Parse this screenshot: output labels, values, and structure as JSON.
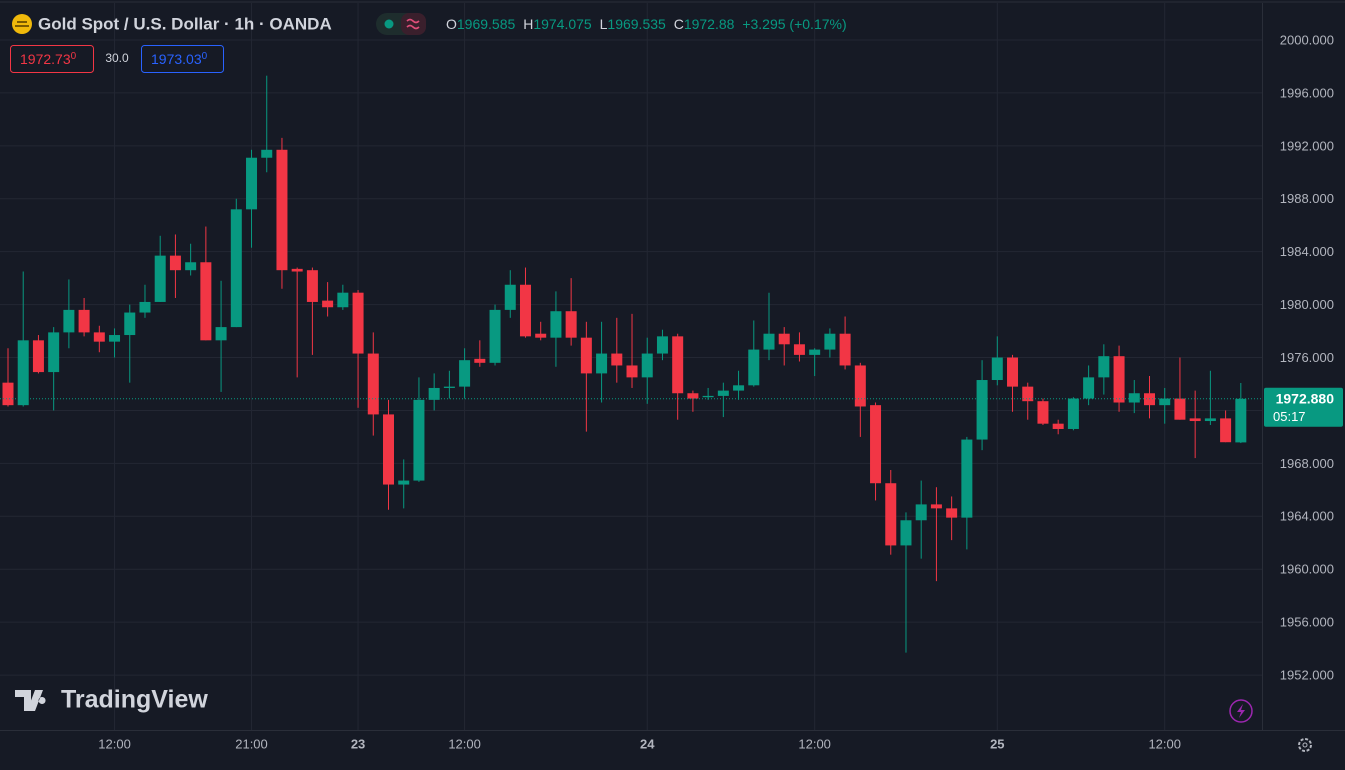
{
  "chart_data": {
    "type": "candlestick",
    "title": "Gold Spot / U.S. Dollar · 1h · OANDA",
    "ohlc_labels": [
      "O",
      "H",
      "L",
      "C"
    ],
    "change_label": "+3.295 (+0.17%)",
    "sell_price": "1972.73",
    "sell_fraction": "0",
    "spread": "30.0",
    "buy_price": "1973.03",
    "buy_fraction": "0",
    "last_price": {
      "value": 1972.88,
      "label": "1972.880"
    },
    "countdown": "05:17",
    "watermark": "TradingView",
    "up_color": "#089981",
    "down_color": "#f23645",
    "grid": true,
    "categories": [
      null,
      null,
      null,
      null,
      null,
      null,
      null,
      "12:00",
      null,
      null,
      null,
      null,
      null,
      null,
      null,
      null,
      "21:00",
      null,
      null,
      null,
      null,
      null,
      null,
      "23",
      null,
      null,
      null,
      null,
      null,
      null,
      "12:00",
      null,
      null,
      null,
      null,
      null,
      null,
      null,
      null,
      null,
      null,
      null,
      "24",
      null,
      null,
      null,
      null,
      null,
      null,
      null,
      null,
      null,
      null,
      "12:00",
      null,
      null,
      null,
      null,
      null,
      null,
      null,
      null,
      null,
      null,
      null,
      "25",
      null,
      null,
      null,
      null,
      null,
      null,
      null,
      null,
      null,
      null,
      "12:00",
      null,
      null,
      null,
      null,
      null
    ],
    "open": [
      1974.1,
      1972.4,
      1977.3,
      1974.9,
      1977.9,
      1979.6,
      1977.9,
      1977.2,
      1977.7,
      1979.4,
      1980.2,
      1983.7,
      1982.6,
      1983.2,
      1977.3,
      1978.3,
      1987.2,
      1991.1,
      1991.7,
      1982.7,
      1982.6,
      1980.3,
      1979.8,
      1980.9,
      1976.3,
      1971.7,
      1966.4,
      1966.7,
      1972.8,
      1973.7,
      1973.8,
      1975.9,
      1975.6,
      1979.6,
      1981.5,
      1977.8,
      1977.5,
      1979.5,
      1977.5,
      1974.8,
      1976.3,
      1975.4,
      1974.5,
      1976.3,
      1977.6,
      1973.3,
      1973.0,
      1973.1,
      1973.5,
      1973.9,
      1976.6,
      1977.8,
      1977.0,
      1976.2,
      1976.6,
      1977.8,
      1975.4,
      1972.4,
      1966.5,
      1961.8,
      1963.7,
      1964.9,
      1964.6,
      1963.9,
      1969.8,
      1974.3,
      1976.0,
      1973.8,
      1972.7,
      1971.0,
      1970.6,
      1972.9,
      1974.5,
      1976.1,
      1972.6,
      1973.3,
      1972.4,
      1972.9,
      1971.4,
      1971.2,
      1971.4,
      1969.585
    ],
    "high": [
      1976.7,
      1982.5,
      1977.7,
      1978.3,
      1981.9,
      1980.5,
      1978.4,
      1978.2,
      1980.0,
      1981.5,
      1985.2,
      1985.3,
      1984.6,
      1985.9,
      1981.8,
      1988.0,
      1991.7,
      1997.3,
      1992.6,
      1982.8,
      1982.8,
      1981.7,
      1981.5,
      1981.1,
      1977.9,
      1972.8,
      1968.3,
      1974.5,
      1974.8,
      1975.0,
      1976.7,
      1977.3,
      1980.0,
      1982.6,
      1982.8,
      1978.7,
      1981.0,
      1982.0,
      1978.7,
      1978.7,
      1979.0,
      1979.3,
      1977.5,
      1978.1,
      1977.8,
      1973.5,
      1973.7,
      1974.1,
      1975.0,
      1978.8,
      1980.9,
      1978.3,
      1977.9,
      1976.7,
      1978.2,
      1979.1,
      1975.6,
      1972.6,
      1967.5,
      1964.3,
      1966.7,
      1966.2,
      1965.5,
      1970.0,
      1975.8,
      1977.6,
      1976.2,
      1974.1,
      1972.9,
      1971.3,
      1973.0,
      1975.4,
      1977.0,
      1976.9,
      1974.3,
      1974.6,
      1973.7,
      1976.0,
      1973.5,
      1975.0,
      1972.0,
      1974.075
    ],
    "low": [
      1972.3,
      1972.3,
      1974.8,
      1972.0,
      1976.7,
      1977.6,
      1976.4,
      1976.0,
      1974.1,
      1979.0,
      1980.2,
      1980.5,
      1982.2,
      1977.3,
      1973.4,
      1978.3,
      1984.3,
      1990.0,
      1981.2,
      1974.5,
      1976.2,
      1979.1,
      1979.6,
      1972.2,
      1970.1,
      1964.5,
      1964.6,
      1966.6,
      1972.0,
      1972.9,
      1972.9,
      1975.3,
      1975.4,
      1979.0,
      1977.5,
      1977.3,
      1975.3,
      1976.9,
      1970.4,
      1972.6,
      1974.1,
      1973.7,
      1972.5,
      1975.8,
      1971.3,
      1971.9,
      1972.8,
      1971.5,
      1972.8,
      1973.8,
      1975.8,
      1975.4,
      1975.7,
      1974.6,
      1976.0,
      1975.1,
      1970.0,
      1965.2,
      1961.1,
      1953.7,
      1960.8,
      1959.1,
      1962.2,
      1961.5,
      1969.0,
      1973.9,
      1971.9,
      1971.3,
      1970.9,
      1970.2,
      1970.5,
      1972.4,
      1973.2,
      1971.9,
      1971.8,
      1971.4,
      1971.0,
      1971.3,
      1968.4,
      1970.9,
      1969.6,
      1969.535
    ],
    "close": [
      1972.4,
      1977.3,
      1974.9,
      1977.9,
      1979.6,
      1977.9,
      1977.2,
      1977.7,
      1979.4,
      1980.2,
      1983.7,
      1982.6,
      1983.2,
      1977.3,
      1978.3,
      1987.2,
      1991.1,
      1991.7,
      1982.6,
      1982.5,
      1980.2,
      1979.8,
      1980.9,
      1976.3,
      1971.7,
      1966.4,
      1966.7,
      1972.8,
      1973.7,
      1973.8,
      1975.8,
      1975.6,
      1979.6,
      1981.5,
      1977.6,
      1977.5,
      1979.5,
      1977.5,
      1974.8,
      1976.3,
      1975.4,
      1974.5,
      1976.3,
      1977.6,
      1973.3,
      1972.9,
      1973.1,
      1973.5,
      1973.9,
      1976.6,
      1977.8,
      1977.0,
      1976.2,
      1976.6,
      1977.8,
      1975.4,
      1972.3,
      1966.5,
      1961.8,
      1963.7,
      1964.9,
      1964.6,
      1963.9,
      1969.8,
      1974.3,
      1976.0,
      1973.8,
      1972.7,
      1971.0,
      1970.6,
      1972.9,
      1974.5,
      1976.1,
      1972.6,
      1973.3,
      1972.4,
      1972.9,
      1971.3,
      1971.2,
      1971.4,
      1969.6,
      1972.88
    ],
    "ylim": [
      1947.85,
      2003.02
    ],
    "yticks": [
      {
        "value": 1952,
        "label": "1952.000"
      },
      {
        "value": 1956,
        "label": "1956.000"
      },
      {
        "value": 1960,
        "label": "1960.000"
      },
      {
        "value": 1964,
        "label": "1964.000"
      },
      {
        "value": 1968,
        "label": "1968.000"
      },
      {
        "value": 1972,
        "label": "1972.000"
      },
      {
        "value": 1976,
        "label": "1976.000"
      },
      {
        "value": 1980,
        "label": "1980.000"
      },
      {
        "value": 1984,
        "label": "1984.000"
      },
      {
        "value": 1988,
        "label": "1988.000"
      },
      {
        "value": 1992,
        "label": "1992.000"
      },
      {
        "value": 1996,
        "label": "1996.000"
      },
      {
        "value": 2000,
        "label": "2000.000"
      }
    ]
  }
}
